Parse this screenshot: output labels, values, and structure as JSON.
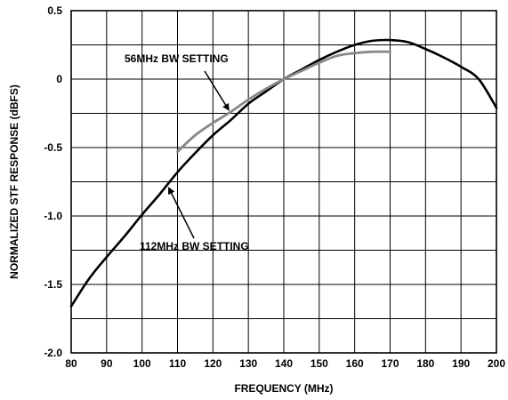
{
  "chart_data": {
    "type": "line",
    "xlabel": "FREQUENCY (MHz)",
    "ylabel": "NORMALIZED STF RESPONSE (dBFS)",
    "xlim": [
      80,
      200
    ],
    "ylim": [
      -2.0,
      0.5
    ],
    "x_ticks": [
      "80",
      "90",
      "100",
      "110",
      "120",
      "130",
      "140",
      "150",
      "160",
      "170",
      "180",
      "190",
      "200"
    ],
    "y_ticks": [
      "0.5",
      "0",
      "-0.5",
      "-1.0",
      "-1.5",
      "-2.0"
    ],
    "grid": true,
    "series": [
      {
        "name": "112MHz BW SETTING",
        "color": "#000000",
        "x": [
          80,
          85,
          90,
          95,
          100,
          105,
          110,
          115,
          120,
          125,
          130,
          135,
          140,
          145,
          150,
          155,
          160,
          165,
          170,
          175,
          180,
          185,
          190,
          195,
          200
        ],
        "y": [
          -1.66,
          -1.46,
          -1.3,
          -1.15,
          -0.99,
          -0.84,
          -0.68,
          -0.54,
          -0.41,
          -0.3,
          -0.18,
          -0.09,
          0.0,
          0.07,
          0.14,
          0.2,
          0.25,
          0.28,
          0.285,
          0.27,
          0.22,
          0.16,
          0.09,
          0.0,
          -0.21
        ]
      },
      {
        "name": "56MHz BW SETTING",
        "color": "#888888",
        "x": [
          110,
          115,
          120,
          125,
          130,
          135,
          140,
          145,
          150,
          155,
          160,
          165,
          170
        ],
        "y": [
          -0.53,
          -0.41,
          -0.32,
          -0.24,
          -0.15,
          -0.07,
          0.0,
          0.06,
          0.12,
          0.17,
          0.19,
          0.2,
          0.2
        ]
      }
    ],
    "annotations": [
      {
        "text": "56MHz BW SETTING",
        "arrow_to": [
          125,
          -0.24
        ]
      },
      {
        "text": "112MHz BW SETTING",
        "arrow_to": [
          107,
          -0.78
        ]
      }
    ]
  }
}
